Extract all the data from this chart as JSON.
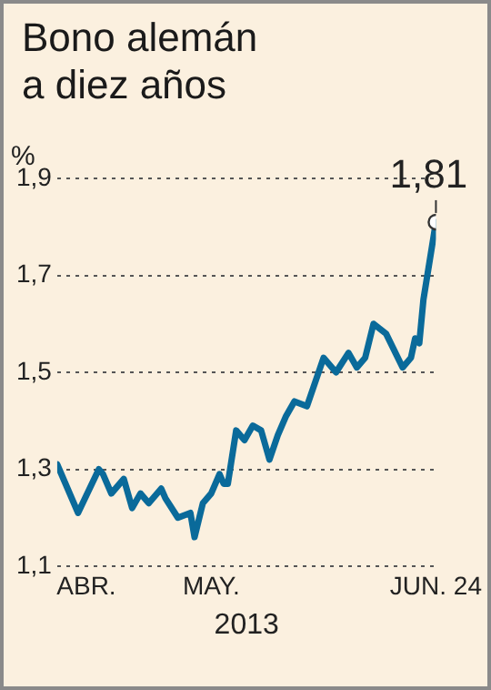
{
  "chart_data": {
    "type": "line",
    "title": "Bono alemán a diez años",
    "ylabel": "%",
    "xlabel": "2013",
    "x": [
      "2013-03-25",
      "2013-03-30",
      "2013-04-04",
      "2013-04-05",
      "2013-04-07",
      "2013-04-10",
      "2013-04-12",
      "2013-04-14",
      "2013-04-16",
      "2013-04-19",
      "2013-04-20",
      "2013-04-23",
      "2013-04-26",
      "2013-04-27",
      "2013-04-29",
      "2013-05-01",
      "2013-05-03",
      "2013-05-04",
      "2013-05-05",
      "2013-05-07",
      "2013-05-09",
      "2013-05-11",
      "2013-05-13",
      "2013-05-15",
      "2013-05-17",
      "2013-05-19",
      "2013-05-21",
      "2013-05-24",
      "2013-05-28",
      "2013-05-31",
      "2013-06-03",
      "2013-06-05",
      "2013-06-07",
      "2013-06-09",
      "2013-06-12",
      "2013-06-16",
      "2013-06-18",
      "2013-06-19",
      "2013-06-20",
      "2013-06-21",
      "2013-06-24"
    ],
    "series": [
      {
        "color": "#0a6a9a",
        "values": [
          1.31,
          1.21,
          1.3,
          1.29,
          1.25,
          1.28,
          1.22,
          1.25,
          1.23,
          1.26,
          1.24,
          1.2,
          1.21,
          1.16,
          1.23,
          1.25,
          1.29,
          1.27,
          1.27,
          1.38,
          1.36,
          1.39,
          1.38,
          1.32,
          1.37,
          1.41,
          1.44,
          1.43,
          1.53,
          1.5,
          1.54,
          1.51,
          1.53,
          1.6,
          1.58,
          1.51,
          1.53,
          1.57,
          1.56,
          1.65,
          1.81
        ],
        "value_labels": [
          null,
          null,
          null,
          null,
          null,
          null,
          null,
          null,
          null,
          null,
          null,
          null,
          null,
          null,
          null,
          null,
          null,
          null,
          null,
          null,
          null,
          null,
          null,
          null,
          null,
          null,
          null,
          null,
          null,
          null,
          null,
          null,
          null,
          null,
          null,
          null,
          null,
          null,
          null,
          null,
          "1,81"
        ]
      }
    ],
    "xlim": [
      "2013-03-25",
      "2013-06-24"
    ],
    "xticks": [
      {
        "value": "2013-04-01",
        "label": "ABR."
      },
      {
        "value": "2013-05-01",
        "label": "MAY."
      },
      {
        "value": "2013-06-24",
        "label": "JUN. 24"
      }
    ],
    "ylim": [
      1.1,
      1.9
    ],
    "yticks": [
      {
        "value": 1.1,
        "label": "1,1"
      },
      {
        "value": 1.3,
        "label": "1,3"
      },
      {
        "value": 1.5,
        "label": "1,5"
      },
      {
        "value": 1.7,
        "label": "1,7"
      },
      {
        "value": 1.9,
        "label": "1,9"
      }
    ],
    "grid": "y",
    "legend": false,
    "line_style": "solid"
  }
}
